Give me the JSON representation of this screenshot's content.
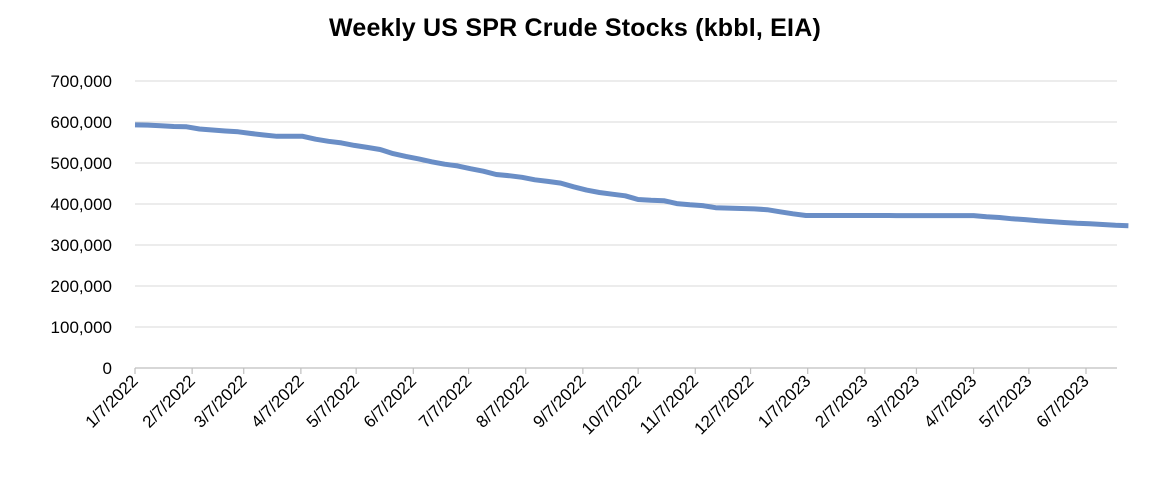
{
  "chart_data": {
    "type": "line",
    "title": "Weekly US SPR Crude Stocks (kbbl, EIA)",
    "xlabel": "",
    "ylabel": "",
    "ylim": [
      0,
      700000
    ],
    "y_ticks": [
      0,
      100000,
      200000,
      300000,
      400000,
      500000,
      600000,
      700000
    ],
    "y_tick_labels": [
      "0",
      "100,000",
      "200,000",
      "300,000",
      "400,000",
      "500,000",
      "600,000",
      "700,000"
    ],
    "x_tick_labels": [
      "1/7/2022",
      "2/7/2022",
      "3/7/2022",
      "4/7/2022",
      "5/7/2022",
      "6/7/2022",
      "7/7/2022",
      "8/7/2022",
      "9/7/2022",
      "10/7/2022",
      "11/7/2022",
      "12/7/2022",
      "1/7/2023",
      "2/7/2023",
      "3/7/2023",
      "4/7/2023",
      "5/7/2023",
      "6/7/2023"
    ],
    "grid": true,
    "line_color": "#6a8ec6",
    "series": [
      {
        "name": "SPR Crude Stocks",
        "x": [
          "2022-01-07",
          "2022-01-14",
          "2022-01-21",
          "2022-01-28",
          "2022-02-04",
          "2022-02-11",
          "2022-02-18",
          "2022-02-25",
          "2022-03-04",
          "2022-03-11",
          "2022-03-18",
          "2022-03-25",
          "2022-04-01",
          "2022-04-08",
          "2022-04-15",
          "2022-04-22",
          "2022-04-29",
          "2022-05-06",
          "2022-05-13",
          "2022-05-20",
          "2022-05-27",
          "2022-06-03",
          "2022-06-10",
          "2022-06-17",
          "2022-06-24",
          "2022-07-01",
          "2022-07-08",
          "2022-07-15",
          "2022-07-22",
          "2022-07-29",
          "2022-08-05",
          "2022-08-12",
          "2022-08-19",
          "2022-08-26",
          "2022-09-02",
          "2022-09-09",
          "2022-09-16",
          "2022-09-23",
          "2022-09-30",
          "2022-10-07",
          "2022-10-14",
          "2022-10-21",
          "2022-10-28",
          "2022-11-04",
          "2022-11-11",
          "2022-11-18",
          "2022-11-25",
          "2022-12-02",
          "2022-12-09",
          "2022-12-16",
          "2022-12-23",
          "2022-12-30",
          "2023-01-06",
          "2023-01-13",
          "2023-01-20",
          "2023-01-27",
          "2023-02-03",
          "2023-02-10",
          "2023-02-17",
          "2023-02-24",
          "2023-03-03",
          "2023-03-10",
          "2023-03-17",
          "2023-03-24",
          "2023-03-31",
          "2023-04-07",
          "2023-04-14",
          "2023-04-21",
          "2023-04-28",
          "2023-05-05",
          "2023-05-12",
          "2023-05-19",
          "2023-05-26",
          "2023-06-02",
          "2023-06-09",
          "2023-06-16",
          "2023-06-23",
          "2023-06-30"
        ],
        "values": [
          593000,
          592500,
          591000,
          589000,
          588400,
          583000,
          580500,
          578000,
          576200,
          572000,
          568400,
          565000,
          565000,
          565000,
          558000,
          553000,
          549000,
          543000,
          538000,
          533000,
          523000,
          516000,
          510000,
          503000,
          497000,
          493000,
          486000,
          480000,
          472000,
          469000,
          465000,
          459000,
          455000,
          451000,
          442000,
          434000,
          428000,
          424000,
          420000,
          411000,
          409000,
          408000,
          401000,
          398000,
          396000,
          391000,
          390000,
          389000,
          388000,
          386000,
          381000,
          376000,
          372000,
          372000,
          372000,
          372000,
          372000,
          372000,
          372000,
          371600,
          371600,
          371600,
          371600,
          371600,
          371600,
          371600,
          369000,
          367000,
          364000,
          362000,
          359000,
          357000,
          355000,
          353000,
          352000,
          350000,
          348000,
          347000
        ]
      }
    ]
  }
}
